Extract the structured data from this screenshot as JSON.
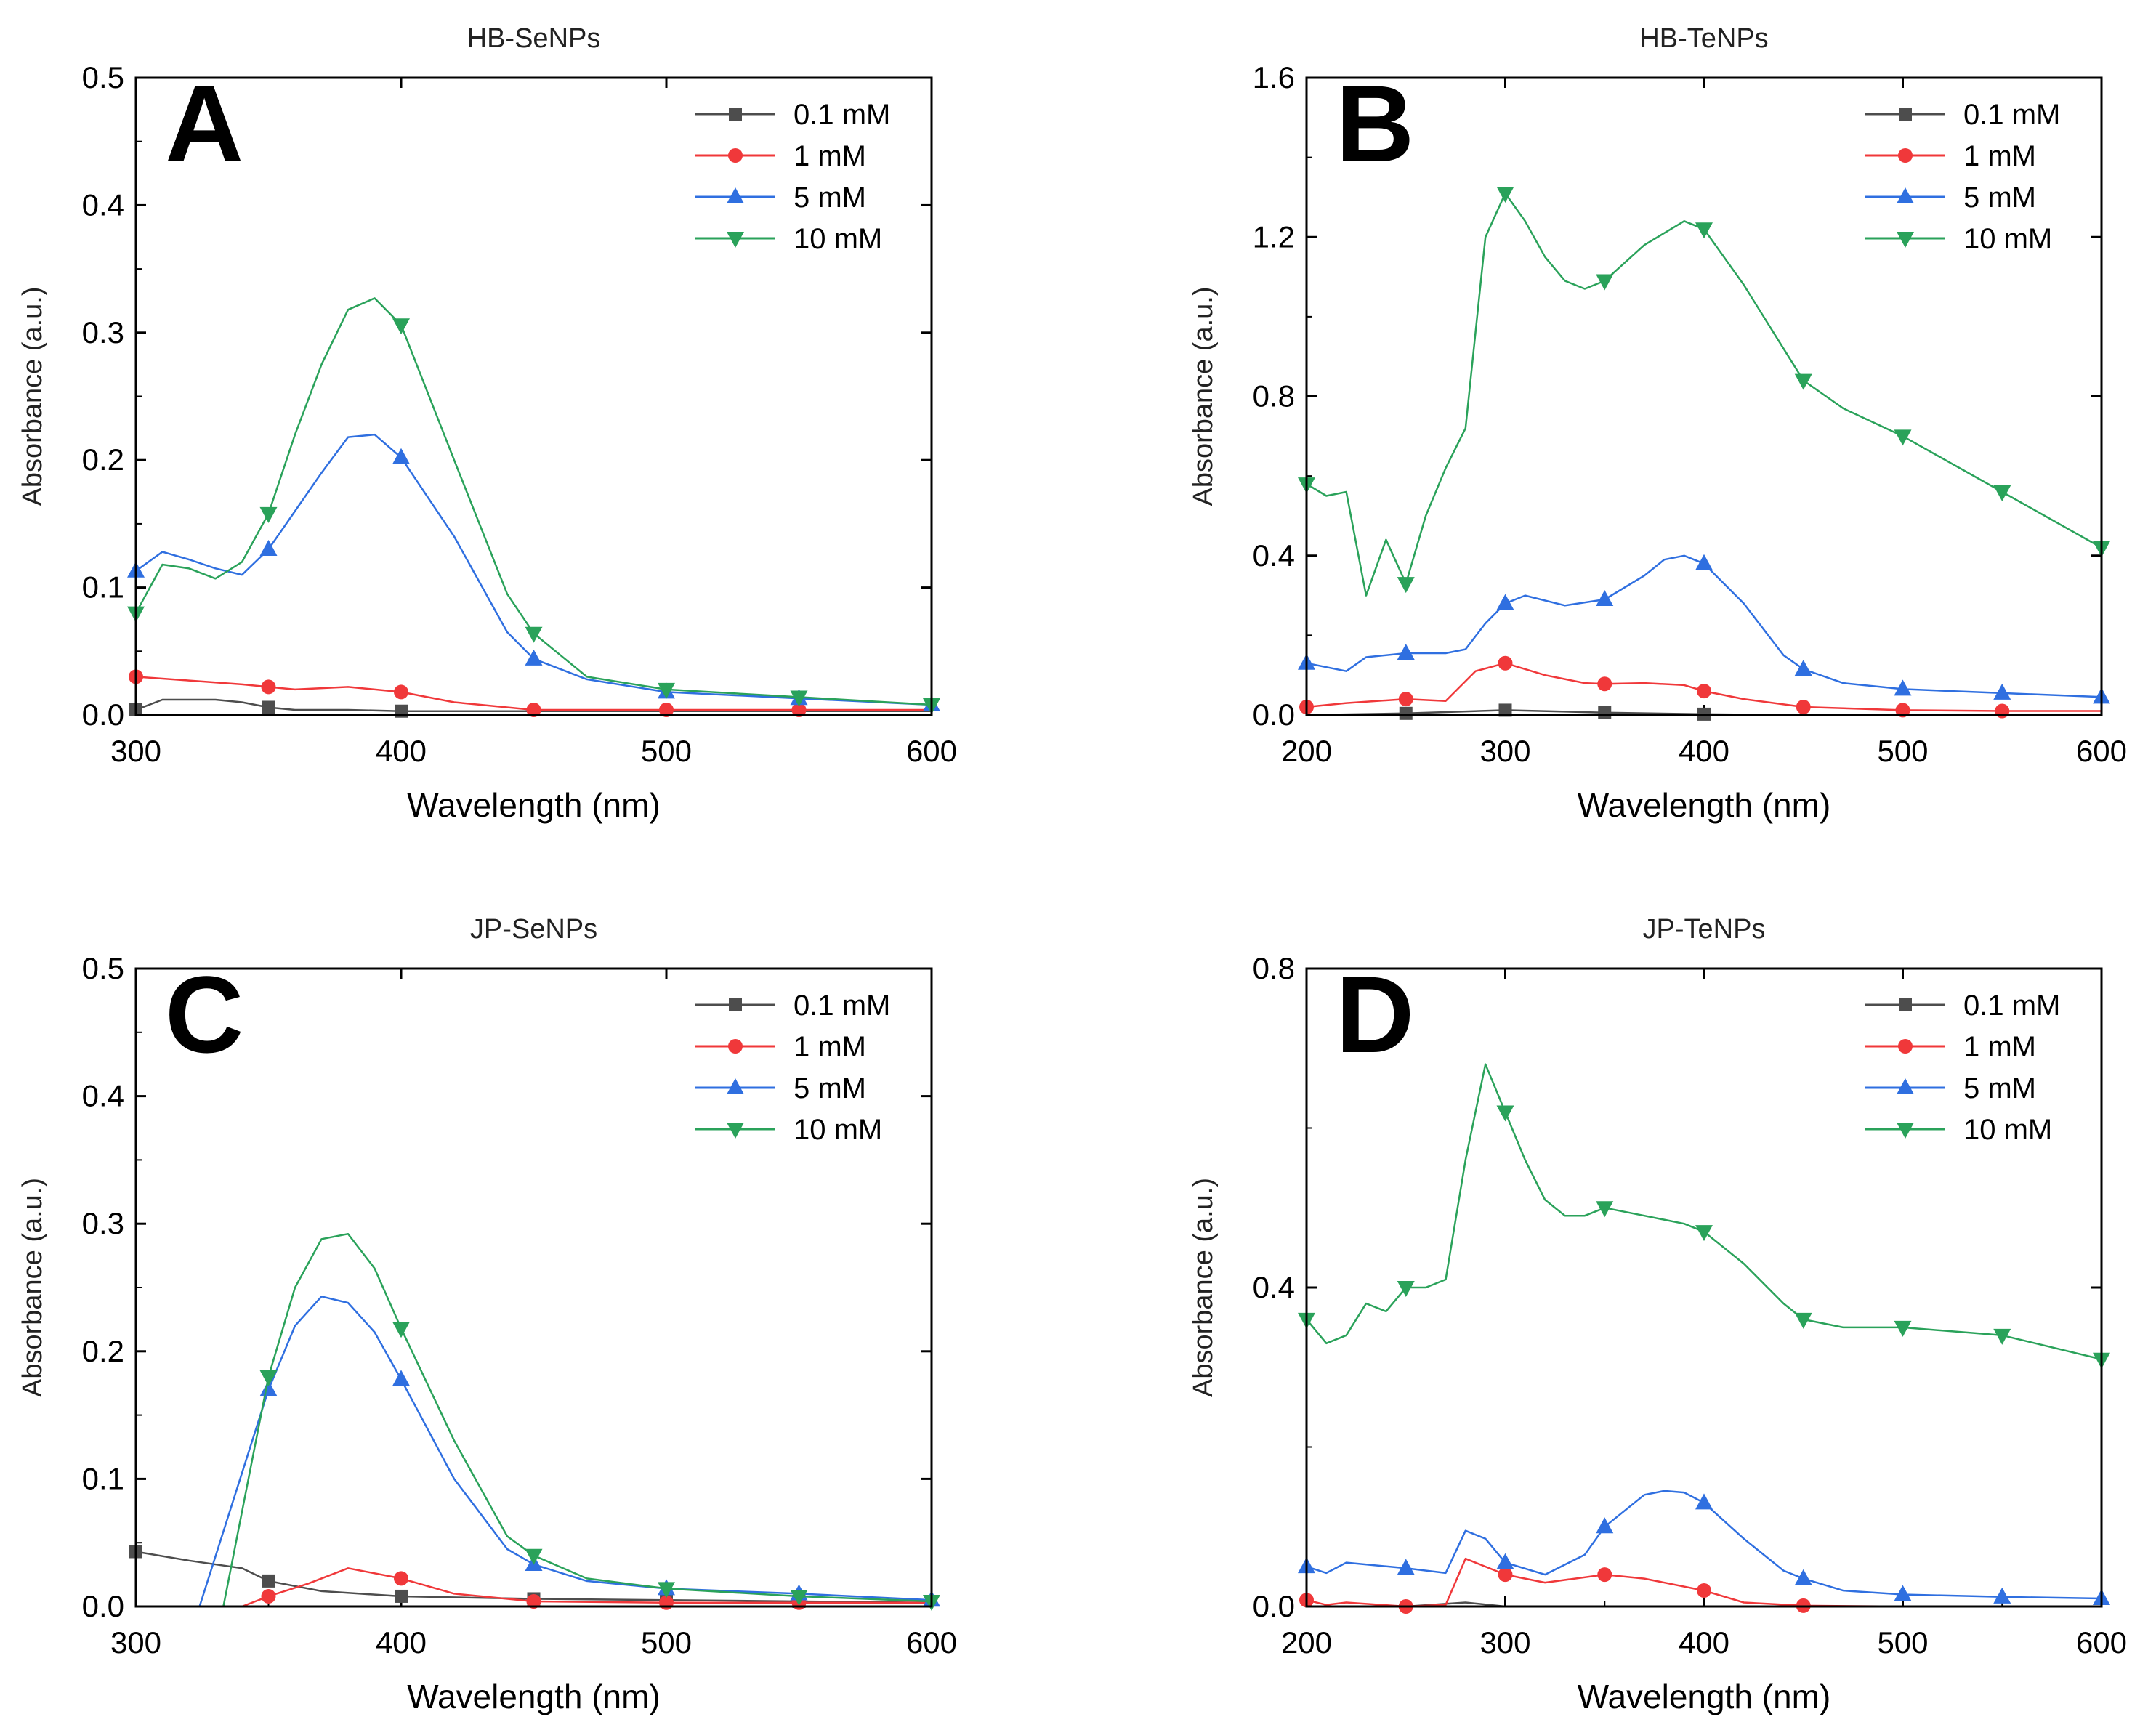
{
  "figure": {
    "background": "#ffffff"
  },
  "colors": {
    "0.1 mM": "#4d4d4d",
    "1 mM": "#f0383a",
    "5 mM": "#2f6fe0",
    "10 mM": "#2aa25a"
  },
  "chart_data": [
    {
      "panel": "A",
      "type": "line",
      "title": "HB-SeNPs",
      "xlabel": "Wavelength (nm)",
      "ylabel": "Absorbance (a.u.)",
      "xlim": [
        300,
        600
      ],
      "ylim": [
        0,
        0.5
      ],
      "xticks": [
        "300",
        "400",
        "500",
        "600"
      ],
      "yticks": [
        "0.0",
        "0.1",
        "0.2",
        "0.3",
        "0.4",
        "0.5"
      ],
      "legend": "top-right",
      "series": [
        {
          "name": "0.1 mM",
          "marker": "square",
          "x": [
            300,
            310,
            320,
            330,
            340,
            350,
            360,
            380,
            400,
            450,
            500,
            550,
            600
          ],
          "y": [
            0.004,
            0.012,
            0.012,
            0.012,
            0.01,
            0.006,
            0.004,
            0.004,
            0.003,
            0.003,
            0.003,
            0.003,
            0.003
          ],
          "markers_x": [
            300,
            350,
            400
          ]
        },
        {
          "name": "1 mM",
          "marker": "circle",
          "x": [
            300,
            320,
            340,
            350,
            360,
            380,
            400,
            420,
            450,
            500,
            550,
            600
          ],
          "y": [
            0.03,
            0.027,
            0.024,
            0.022,
            0.02,
            0.022,
            0.018,
            0.01,
            0.004,
            0.004,
            0.004,
            0.004
          ],
          "markers_x": [
            300,
            350,
            400,
            450,
            500,
            550
          ]
        },
        {
          "name": "5 mM",
          "marker": "triangle-up",
          "x": [
            300,
            310,
            320,
            330,
            340,
            350,
            360,
            370,
            380,
            390,
            400,
            420,
            440,
            450,
            470,
            500,
            550,
            600
          ],
          "y": [
            0.113,
            0.128,
            0.122,
            0.115,
            0.11,
            0.13,
            0.16,
            0.19,
            0.218,
            0.22,
            0.202,
            0.14,
            0.065,
            0.044,
            0.028,
            0.018,
            0.013,
            0.008
          ],
          "markers_x": [
            300,
            350,
            400,
            450,
            500,
            550,
            600
          ]
        },
        {
          "name": "10 mM",
          "marker": "triangle-down",
          "x": [
            300,
            310,
            320,
            330,
            340,
            350,
            360,
            370,
            380,
            390,
            400,
            420,
            440,
            450,
            470,
            500,
            550,
            600
          ],
          "y": [
            0.08,
            0.118,
            0.115,
            0.107,
            0.12,
            0.158,
            0.22,
            0.275,
            0.318,
            0.327,
            0.306,
            0.2,
            0.095,
            0.064,
            0.03,
            0.02,
            0.014,
            0.008
          ],
          "markers_x": [
            300,
            350,
            400,
            450,
            500,
            550,
            600
          ]
        }
      ]
    },
    {
      "panel": "B",
      "type": "line",
      "title": "HB-TeNPs",
      "xlabel": "Wavelength (nm)",
      "ylabel": "Absorbance (a.u.)",
      "xlim": [
        200,
        600
      ],
      "ylim": [
        0,
        1.6
      ],
      "xticks": [
        "200",
        "300",
        "400",
        "500",
        "600"
      ],
      "yticks": [
        "0.0",
        "0.4",
        "0.8",
        "1.2",
        "1.6"
      ],
      "legend": "top-right",
      "series": [
        {
          "name": "0.1 mM",
          "marker": "square",
          "x": [
            200,
            250,
            300,
            350,
            400,
            450,
            500,
            550,
            600
          ],
          "y": [
            0.0,
            0.004,
            0.012,
            0.006,
            0.002,
            0.0,
            0.0,
            0.0,
            0.0
          ],
          "markers_x": [
            250,
            300,
            350,
            400
          ]
        },
        {
          "name": "1 mM",
          "marker": "circle",
          "x": [
            200,
            220,
            250,
            270,
            285,
            300,
            320,
            340,
            350,
            370,
            390,
            400,
            420,
            450,
            500,
            550,
            600
          ],
          "y": [
            0.02,
            0.03,
            0.04,
            0.035,
            0.11,
            0.13,
            0.1,
            0.08,
            0.078,
            0.08,
            0.075,
            0.06,
            0.04,
            0.02,
            0.012,
            0.01,
            0.01
          ],
          "markers_x": [
            200,
            250,
            300,
            350,
            400,
            450,
            500,
            550
          ]
        },
        {
          "name": "5 mM",
          "marker": "triangle-up",
          "x": [
            200,
            220,
            230,
            250,
            270,
            280,
            290,
            300,
            310,
            330,
            350,
            370,
            380,
            390,
            400,
            420,
            440,
            450,
            470,
            500,
            550,
            600
          ],
          "y": [
            0.13,
            0.11,
            0.145,
            0.155,
            0.155,
            0.165,
            0.23,
            0.28,
            0.3,
            0.275,
            0.29,
            0.35,
            0.39,
            0.4,
            0.38,
            0.28,
            0.15,
            0.115,
            0.08,
            0.065,
            0.055,
            0.045
          ],
          "markers_x": [
            200,
            250,
            300,
            350,
            400,
            450,
            500,
            550,
            600
          ]
        },
        {
          "name": "10 mM",
          "marker": "triangle-down",
          "x": [
            200,
            210,
            220,
            230,
            240,
            250,
            260,
            270,
            280,
            290,
            300,
            310,
            320,
            330,
            340,
            350,
            370,
            390,
            400,
            420,
            440,
            450,
            470,
            500,
            550,
            600
          ],
          "y": [
            0.58,
            0.55,
            0.56,
            0.3,
            0.44,
            0.33,
            0.5,
            0.62,
            0.72,
            1.2,
            1.31,
            1.24,
            1.15,
            1.09,
            1.07,
            1.09,
            1.18,
            1.24,
            1.22,
            1.08,
            0.92,
            0.84,
            0.77,
            0.7,
            0.56,
            0.42
          ],
          "markers_x": [
            200,
            250,
            300,
            350,
            400,
            450,
            500,
            550,
            600
          ]
        }
      ]
    },
    {
      "panel": "C",
      "type": "line",
      "title": "JP-SeNPs",
      "xlabel": "Wavelength (nm)",
      "ylabel": "Absorbance (a.u.)",
      "xlim": [
        300,
        600
      ],
      "ylim": [
        0,
        0.5
      ],
      "xticks": [
        "300",
        "400",
        "500",
        "600"
      ],
      "yticks": [
        "0.0",
        "0.1",
        "0.2",
        "0.3",
        "0.4",
        "0.5"
      ],
      "legend": "top-right",
      "series": [
        {
          "name": "0.1 mM",
          "marker": "square",
          "x": [
            300,
            320,
            340,
            350,
            370,
            400,
            450,
            500,
            550,
            600
          ],
          "y": [
            0.043,
            0.036,
            0.03,
            0.02,
            0.012,
            0.008,
            0.006,
            0.005,
            0.004,
            0.003
          ],
          "markers_x": [
            300,
            350,
            400,
            450,
            500,
            550
          ]
        },
        {
          "name": "1 mM",
          "marker": "circle",
          "x": [
            340,
            350,
            365,
            380,
            400,
            420,
            450,
            500,
            550,
            600
          ],
          "y": [
            0.0,
            0.008,
            0.018,
            0.03,
            0.022,
            0.01,
            0.004,
            0.003,
            0.003,
            0.003
          ],
          "markers_x": [
            350,
            400,
            450,
            500,
            550
          ]
        },
        {
          "name": "5 mM",
          "marker": "triangle-up",
          "x": [
            324,
            350,
            360,
            370,
            380,
            390,
            400,
            420,
            440,
            450,
            470,
            500,
            550,
            600
          ],
          "y": [
            0.0,
            0.17,
            0.22,
            0.243,
            0.238,
            0.215,
            0.178,
            0.1,
            0.045,
            0.033,
            0.02,
            0.014,
            0.01,
            0.005
          ],
          "markers_x": [
            350,
            400,
            450,
            500,
            550,
            600
          ]
        },
        {
          "name": "10 mM",
          "marker": "triangle-down",
          "x": [
            333,
            350,
            360,
            370,
            380,
            390,
            400,
            420,
            440,
            450,
            470,
            500,
            550,
            600
          ],
          "y": [
            0.0,
            0.18,
            0.25,
            0.288,
            0.292,
            0.265,
            0.218,
            0.13,
            0.055,
            0.04,
            0.022,
            0.014,
            0.008,
            0.004
          ],
          "markers_x": [
            350,
            400,
            450,
            500,
            550,
            600
          ]
        }
      ]
    },
    {
      "panel": "D",
      "type": "line",
      "title": "JP-TeNPs",
      "xlabel": "Wavelength (nm)",
      "ylabel": "Absorbance (a.u.)",
      "xlim": [
        200,
        600
      ],
      "ylim": [
        0,
        0.8
      ],
      "xticks": [
        "200",
        "300",
        "400",
        "500",
        "600"
      ],
      "yticks": [
        "0.0",
        "0.4",
        "0.8"
      ],
      "legend": "top-right",
      "series": [
        {
          "name": "0.1 mM",
          "marker": "square",
          "x": [
            200,
            250,
            280,
            300,
            350,
            400,
            450,
            500,
            550,
            600
          ],
          "y": [
            0.0,
            0.0,
            0.005,
            0.0,
            0.0,
            0.0,
            0.0,
            0.0,
            0.0,
            0.0
          ],
          "markers_x": []
        },
        {
          "name": "1 mM",
          "marker": "circle",
          "x": [
            200,
            210,
            220,
            250,
            270,
            280,
            290,
            300,
            320,
            350,
            370,
            400,
            420,
            450,
            500,
            550,
            600
          ],
          "y": [
            0.008,
            0.002,
            0.005,
            0.0,
            0.002,
            0.06,
            0.05,
            0.04,
            0.03,
            0.04,
            0.035,
            0.02,
            0.005,
            0.001,
            0.0,
            0.0,
            0.0
          ],
          "markers_x": [
            200,
            250,
            300,
            350,
            400,
            450
          ]
        },
        {
          "name": "5 mM",
          "marker": "triangle-up",
          "x": [
            200,
            210,
            220,
            250,
            270,
            280,
            290,
            300,
            320,
            340,
            350,
            370,
            380,
            390,
            400,
            420,
            440,
            450,
            470,
            500,
            550,
            600
          ],
          "y": [
            0.05,
            0.042,
            0.055,
            0.048,
            0.042,
            0.095,
            0.085,
            0.055,
            0.04,
            0.065,
            0.1,
            0.14,
            0.145,
            0.143,
            0.13,
            0.085,
            0.045,
            0.035,
            0.02,
            0.015,
            0.012,
            0.01
          ],
          "markers_x": [
            200,
            250,
            300,
            350,
            400,
            450,
            500,
            550,
            600
          ]
        },
        {
          "name": "10 mM",
          "marker": "triangle-down",
          "x": [
            200,
            210,
            220,
            230,
            240,
            250,
            260,
            270,
            280,
            290,
            300,
            310,
            320,
            330,
            340,
            350,
            370,
            390,
            400,
            420,
            440,
            450,
            470,
            500,
            550,
            600
          ],
          "y": [
            0.36,
            0.33,
            0.34,
            0.38,
            0.37,
            0.4,
            0.4,
            0.41,
            0.56,
            0.68,
            0.62,
            0.56,
            0.51,
            0.49,
            0.49,
            0.5,
            0.49,
            0.48,
            0.47,
            0.43,
            0.38,
            0.36,
            0.35,
            0.35,
            0.34,
            0.31
          ],
          "markers_x": [
            200,
            250,
            300,
            350,
            400,
            450,
            500,
            550,
            600
          ]
        }
      ]
    }
  ]
}
